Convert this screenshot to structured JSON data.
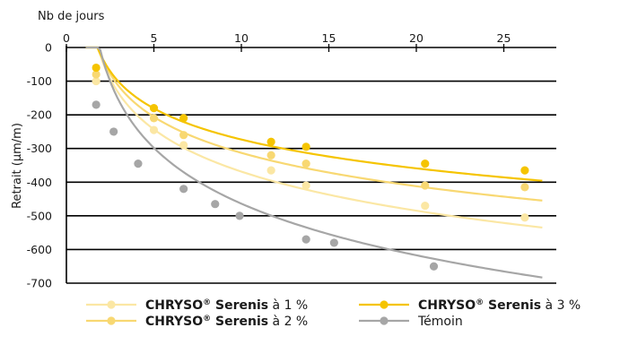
{
  "chart_data": {
    "type": "scatter",
    "xlabel": "Nb de jours",
    "ylabel": "Retrait (µm/m)",
    "xlim": [
      0,
      28
    ],
    "ylim": [
      -700,
      0
    ],
    "x_ticks": [
      0,
      5,
      10,
      15,
      20,
      25
    ],
    "y_ticks": [
      0,
      -100,
      -200,
      -300,
      -400,
      -500,
      -600,
      -700
    ],
    "y_gridlines": true,
    "legend_position": "bottom",
    "trendline_end_x": 27.2,
    "series": [
      {
        "name_brand": "CHRYSO",
        "name_reg": "®",
        "name_product": " Serenis",
        "name_suffix": " à 1 %",
        "color": "#fbe7a4",
        "points": [
          [
            1.7,
            -100
          ],
          [
            5,
            -245
          ],
          [
            6.7,
            -290
          ],
          [
            11.7,
            -365
          ],
          [
            13.7,
            -410
          ],
          [
            20.5,
            -470
          ],
          [
            26.2,
            -505
          ]
        ],
        "curve": {
          "a": -25,
          "b": 156,
          "c": 1
        }
      },
      {
        "name_brand": "CHRYSO",
        "name_reg": "®",
        "name_product": " Serenis",
        "name_suffix": " à 2 %",
        "color": "#f8d872",
        "points": [
          [
            1.7,
            -80
          ],
          [
            5,
            -210
          ],
          [
            6.7,
            -260
          ],
          [
            11.7,
            -320
          ],
          [
            13.7,
            -345
          ],
          [
            20.5,
            -410
          ],
          [
            26.2,
            -415
          ]
        ],
        "curve": {
          "a": -20,
          "b": 133,
          "c": 1
        }
      },
      {
        "name_brand": "CHRYSO",
        "name_reg": "®",
        "name_product": " Serenis",
        "name_suffix": " à 3 %",
        "color": "#f5c400",
        "points": [
          [
            1.7,
            -60
          ],
          [
            5,
            -180
          ],
          [
            6.7,
            -210
          ],
          [
            11.7,
            -280
          ],
          [
            13.7,
            -295
          ],
          [
            20.5,
            -345
          ],
          [
            26.2,
            -365
          ]
        ],
        "curve": {
          "a": -20,
          "b": 115,
          "c": 1
        }
      },
      {
        "name_brand": "",
        "name_reg": "",
        "name_product": "",
        "name_suffix": "Témoin",
        "color": "#a6a6a6",
        "points": [
          [
            1.7,
            -170
          ],
          [
            2.7,
            -250
          ],
          [
            4.1,
            -345
          ],
          [
            6.7,
            -420
          ],
          [
            8.5,
            -465
          ],
          [
            9.9,
            -500
          ],
          [
            13.7,
            -570
          ],
          [
            15.3,
            -580
          ],
          [
            21,
            -650
          ]
        ],
        "curve": {
          "a": -10,
          "b": 206,
          "c": 1
        }
      }
    ]
  }
}
